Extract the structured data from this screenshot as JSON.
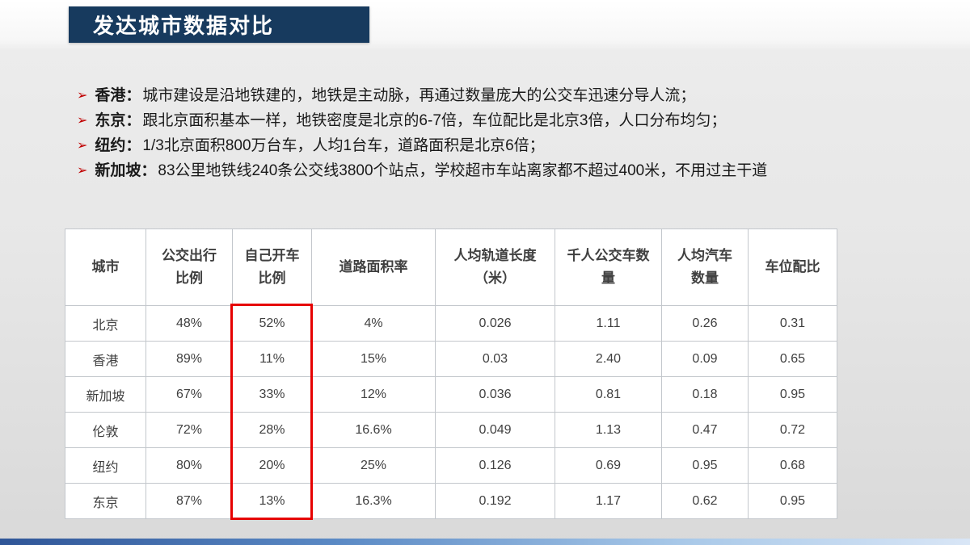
{
  "slide": {
    "title": "发达城市数据对比",
    "bullets": [
      {
        "label": "香港：",
        "text": "城市建设是沿地铁建的，地铁是主动脉，再通过数量庞大的公交车迅速分导人流；"
      },
      {
        "label": "东京：",
        "text": "跟北京面积基本一样，地铁密度是北京的6-7倍，车位配比是北京3倍，人口分布均匀；"
      },
      {
        "label": "纽约：",
        "text": "1/3北京面积800万台车，人均1台车，道路面积是北京6倍；"
      },
      {
        "label": "新加坡：",
        "text": "83公里地铁线240条公交线3800个站点，学校超市车站离家都不超过400米，不用过主干道"
      }
    ]
  },
  "chart_data": {
    "type": "table",
    "title": "发达城市数据对比",
    "columns": [
      "城市",
      "公交出行比例",
      "自己开车比例",
      "道路面积率",
      "人均轨道长度（米）",
      "千人公交车数量",
      "人均汽车数量",
      "车位配比"
    ],
    "rows": [
      [
        "北京",
        "48%",
        "52%",
        "4%",
        "0.026",
        "1.11",
        "0.26",
        "0.31"
      ],
      [
        "香港",
        "89%",
        "11%",
        "15%",
        "0.03",
        "2.40",
        "0.09",
        "0.65"
      ],
      [
        "新加坡",
        "67%",
        "33%",
        "12%",
        "0.036",
        "0.81",
        "0.18",
        "0.95"
      ],
      [
        "伦敦",
        "72%",
        "28%",
        "16.6%",
        "0.049",
        "1.13",
        "0.47",
        "0.72"
      ],
      [
        "纽约",
        "80%",
        "20%",
        "25%",
        "0.126",
        "0.69",
        "0.95",
        "0.68"
      ],
      [
        "东京",
        "87%",
        "13%",
        "16.3%",
        "0.192",
        "1.17",
        "0.62",
        "0.95"
      ]
    ],
    "highlight": {
      "column": "自己开车比例",
      "column_index": 2,
      "color": "#e60000"
    }
  },
  "colors": {
    "title_banner": "#173a5e",
    "bullet_arrow": "#c00000",
    "highlight_red": "#e60000",
    "table_text": "#404040",
    "bottom_bar_start": "#2f5597",
    "bottom_bar_end": "#d9e6f6"
  }
}
